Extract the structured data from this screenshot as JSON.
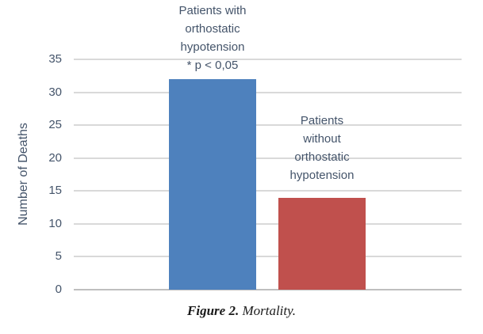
{
  "figure": {
    "caption": {
      "label": "Figure 2.",
      "text": "Mortality."
    }
  },
  "chart_data": {
    "type": "bar",
    "title": "",
    "xlabel": "",
    "ylabel": "Number of Deaths",
    "ylim": [
      0,
      35
    ],
    "yticks": [
      0,
      5,
      10,
      15,
      20,
      25,
      30,
      35
    ],
    "grid": true,
    "legend_position": "none",
    "categories": [
      "Patients with\northostatic\nhypotension\n* p < 0,05",
      "Patients\nwithout\northostatic\nhypotension"
    ],
    "values": [
      32,
      14
    ],
    "bar_colors": [
      "#4E81BD",
      "#C0504D"
    ],
    "annotation": "* p < 0,05",
    "axis_text_color": "#44546A",
    "gridline_color": "#D9D9D9",
    "axis_line_color": "#BFBFBF",
    "background_color": "#FFFFFF"
  }
}
